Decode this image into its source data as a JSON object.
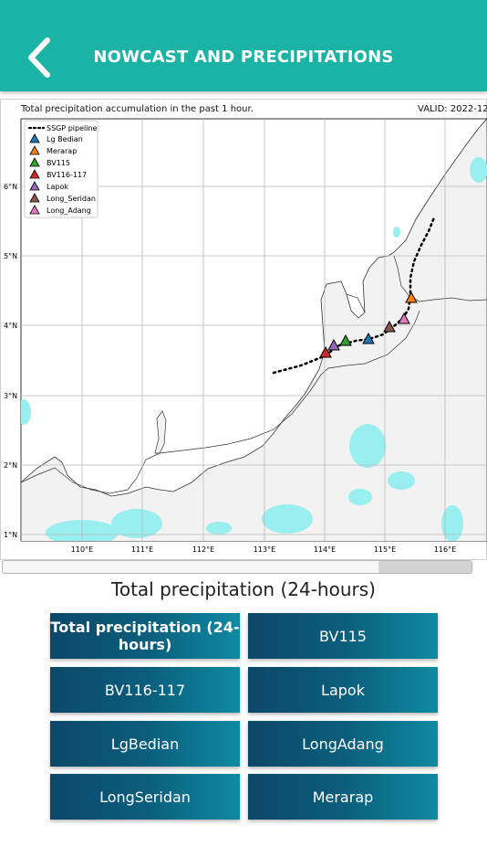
{
  "header": {
    "title": "NOWCAST AND PRECIPITATIONS",
    "back_icon": "chevron-left-icon"
  },
  "map": {
    "caption_left": "Total precipitation accumulation in the past 1 hour.",
    "caption_right": "VALID: 2022-12-",
    "legend": {
      "pipeline_label": "SSGP pipeline",
      "stations": [
        {
          "name": "Lg Bedian",
          "color": "#1f77b4"
        },
        {
          "name": "Merarap",
          "color": "#ff7f0e"
        },
        {
          "name": "BV115",
          "color": "#2ca02c"
        },
        {
          "name": "BV116-117",
          "color": "#d62728"
        },
        {
          "name": "Lapok",
          "color": "#9467bd"
        },
        {
          "name": "Long_Seridan",
          "color": "#8c564b"
        },
        {
          "name": "Long_Adang",
          "color": "#e377c2"
        }
      ]
    },
    "lat_labels": [
      "1°N",
      "2°N",
      "3°N",
      "4°N",
      "5°N",
      "6°N"
    ],
    "lon_labels": [
      "110°E",
      "111°E",
      "112°E",
      "113°E",
      "114°E",
      "115°E",
      "116°E"
    ],
    "colors": {
      "land": "#f2f2f2",
      "precip": "#99eef0",
      "grid": "#b8b8b8"
    }
  },
  "section_title": "Total precipitation (24-hours)",
  "buttons": [
    {
      "label": "Total precipitation (24-hours)",
      "active": true
    },
    {
      "label": "BV115"
    },
    {
      "label": "BV116-117"
    },
    {
      "label": "Lapok"
    },
    {
      "label": "LgBedian"
    },
    {
      "label": "LongAdang"
    },
    {
      "label": "LongSeridan"
    },
    {
      "label": "Merarap"
    }
  ]
}
